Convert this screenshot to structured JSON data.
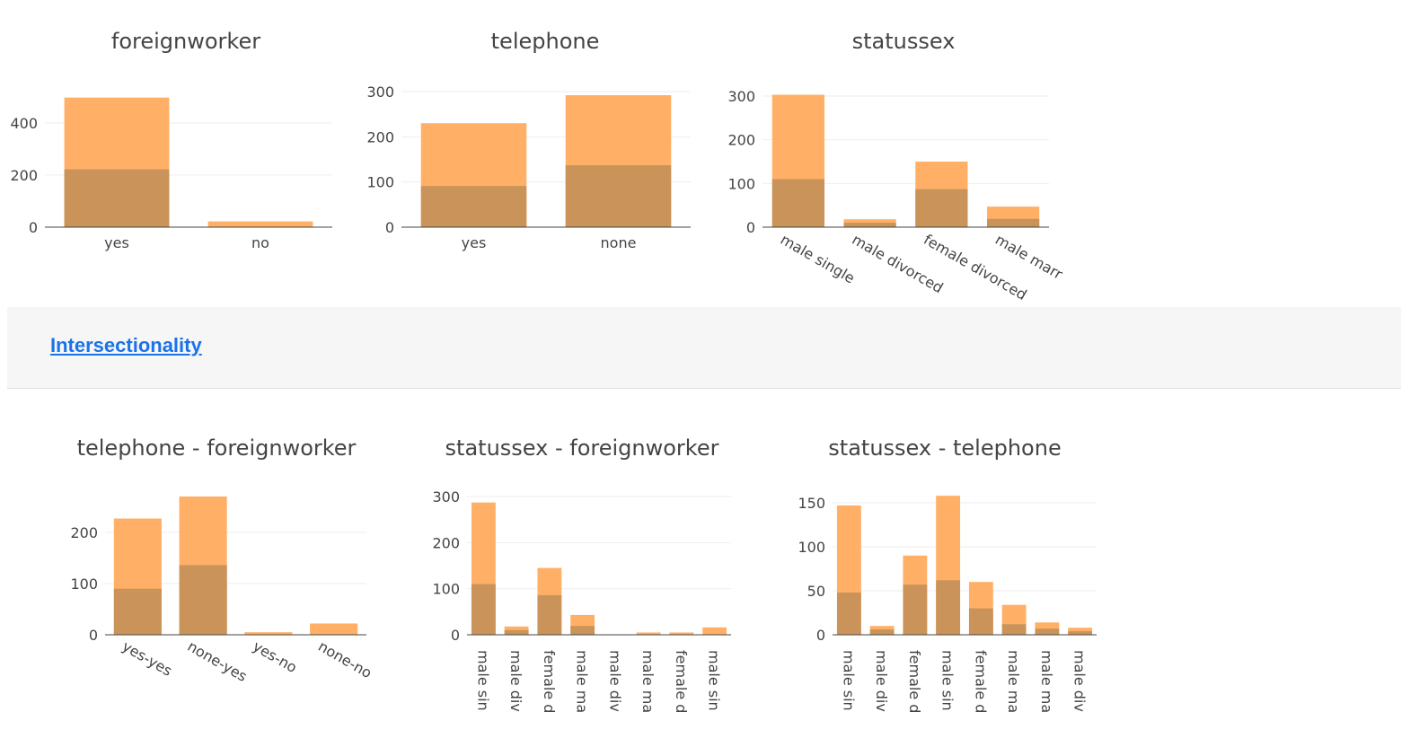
{
  "section": {
    "link_label": "Intersectionality"
  },
  "colors": {
    "total": "#ffb066",
    "positive": "#c99359"
  },
  "chart_data": [
    {
      "id": "c1",
      "type": "bar",
      "title": "foreignworker",
      "categories": [
        "yes",
        "no"
      ],
      "series": [
        {
          "values": [
            497,
            22
          ]
        },
        {
          "values": [
            222,
            0
          ]
        }
      ],
      "ylim": [
        0,
        520
      ],
      "yticks": [
        0,
        200,
        400
      ]
    },
    {
      "id": "c2",
      "type": "bar",
      "title": "telephone",
      "categories": [
        "yes",
        "none"
      ],
      "series": [
        {
          "values": [
            230,
            292
          ]
        },
        {
          "values": [
            91,
            137
          ]
        }
      ],
      "ylim": [
        0,
        300
      ],
      "yticks": [
        0,
        100,
        200,
        300
      ]
    },
    {
      "id": "c3",
      "type": "bar",
      "title": "statussex",
      "categories": [
        "male single",
        "male divorced",
        "female divorced",
        "male marr"
      ],
      "series": [
        {
          "values": [
            303,
            18,
            150,
            47
          ]
        },
        {
          "values": [
            110,
            10,
            87,
            19
          ]
        }
      ],
      "ylim": [
        0,
        300
      ],
      "yticks": [
        0,
        100,
        200,
        300
      ]
    },
    {
      "id": "c4",
      "type": "bar",
      "title": "telephone - foreignworker",
      "categories": [
        "yes-yes",
        "none-yes",
        "yes-no",
        "none-no"
      ],
      "series": [
        {
          "values": [
            227,
            270,
            5,
            22
          ]
        },
        {
          "values": [
            90,
            136,
            0,
            0
          ]
        }
      ],
      "ylim": [
        0,
        270
      ],
      "yticks": [
        0,
        100,
        200
      ]
    },
    {
      "id": "c5",
      "type": "bar",
      "title": "statussex - foreignworker",
      "categories": [
        "male sin",
        "male div",
        "female d",
        "male ma",
        "male div",
        "male ma",
        "female d",
        "male sin"
      ],
      "series": [
        {
          "values": [
            287,
            18,
            145,
            43,
            1,
            5,
            5,
            16
          ]
        },
        {
          "values": [
            110,
            10,
            86,
            19,
            0,
            0,
            0,
            0
          ]
        }
      ],
      "ylim": [
        0,
        300
      ],
      "yticks": [
        0,
        100,
        200,
        300
      ]
    },
    {
      "id": "c6",
      "type": "bar",
      "title": "statussex - telephone",
      "categories": [
        "male sin",
        "male div",
        "female d",
        "male sin",
        "female d",
        "male ma",
        "male ma",
        "male div"
      ],
      "series": [
        {
          "values": [
            147,
            10,
            90,
            158,
            60,
            34,
            14,
            8
          ]
        },
        {
          "values": [
            48,
            6,
            57,
            62,
            30,
            12,
            7,
            4
          ]
        }
      ],
      "ylim": [
        0,
        150
      ],
      "yticks": [
        0,
        50,
        100,
        150
      ]
    }
  ]
}
